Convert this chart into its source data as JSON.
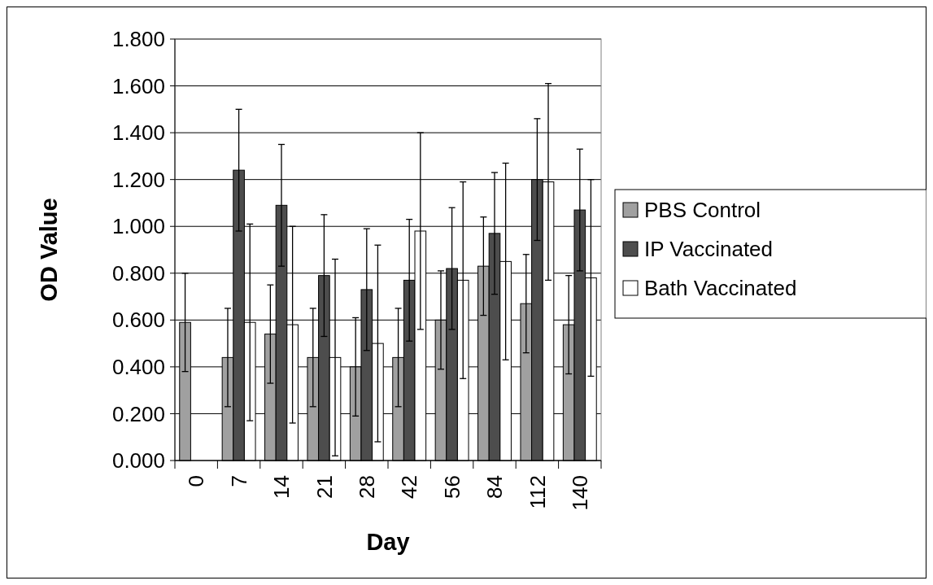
{
  "chart_data": {
    "type": "bar",
    "xlabel": "Day",
    "ylabel": "OD Value",
    "categories": [
      "0",
      "7",
      "14",
      "21",
      "28",
      "42",
      "56",
      "84",
      "112",
      "140"
    ],
    "series": [
      {
        "name": "PBS Control",
        "color": "#a0a0a0",
        "values": [
          0.59,
          0.44,
          0.54,
          0.44,
          0.4,
          0.44,
          0.6,
          0.83,
          0.67,
          0.58
        ],
        "errors": [
          0.21,
          0.21,
          0.21,
          0.21,
          0.21,
          0.21,
          0.21,
          0.21,
          0.21,
          0.21
        ]
      },
      {
        "name": "IP Vaccinated",
        "color": "#4d4d4d",
        "values": [
          null,
          1.24,
          1.09,
          0.79,
          0.73,
          0.77,
          0.82,
          0.97,
          1.2,
          1.07
        ],
        "errors": [
          null,
          0.26,
          0.26,
          0.26,
          0.26,
          0.26,
          0.26,
          0.26,
          0.26,
          0.26
        ]
      },
      {
        "name": "Bath Vaccinated",
        "color": "#ffffff",
        "values": [
          null,
          0.59,
          0.58,
          0.44,
          0.5,
          0.98,
          0.77,
          0.85,
          1.19,
          0.78
        ],
        "errors": [
          null,
          0.42,
          0.42,
          0.42,
          0.42,
          0.42,
          0.42,
          0.42,
          0.42,
          0.42
        ]
      }
    ],
    "ylim": [
      0,
      1.8
    ],
    "yticks": [
      {
        "value": 0,
        "label": "0.000"
      },
      {
        "value": 0.2,
        "label": "0.200"
      },
      {
        "value": 0.4,
        "label": "0.400"
      },
      {
        "value": 0.6,
        "label": "0.600"
      },
      {
        "value": 0.8,
        "label": "0.800"
      },
      {
        "value": 1.0,
        "label": "1.000"
      },
      {
        "value": 1.2,
        "label": "1.200"
      },
      {
        "value": 1.4,
        "label": "1.400"
      },
      {
        "value": 1.6,
        "label": "1.600"
      },
      {
        "value": 1.8,
        "label": "1.800"
      }
    ],
    "grid": "y",
    "legend": "right"
  }
}
